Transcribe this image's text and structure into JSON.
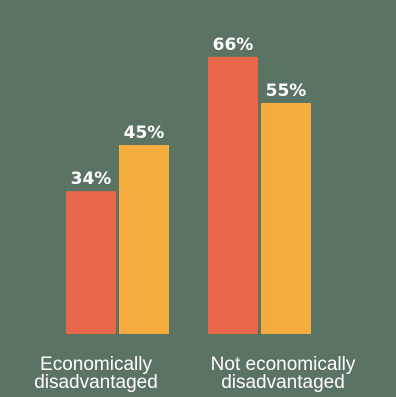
{
  "chart_data": {
    "type": "bar",
    "categories": [
      "Economically\ndisadvantaged",
      "Not economically\ndisadvantaged"
    ],
    "series": [
      {
        "values": [
          34,
          66
        ],
        "color": "#e8674a"
      },
      {
        "values": [
          45,
          55
        ],
        "color": "#f5ac3f"
      }
    ],
    "value_labels": [
      [
        "34%",
        "66%"
      ],
      [
        "45%",
        "55%"
      ]
    ],
    "ylim": [
      0,
      100
    ],
    "title": "",
    "xlabel": "",
    "ylabel": "",
    "grid": false,
    "legend": "none"
  },
  "colors": {
    "background": "#5a7362",
    "text": "#ffffff"
  }
}
